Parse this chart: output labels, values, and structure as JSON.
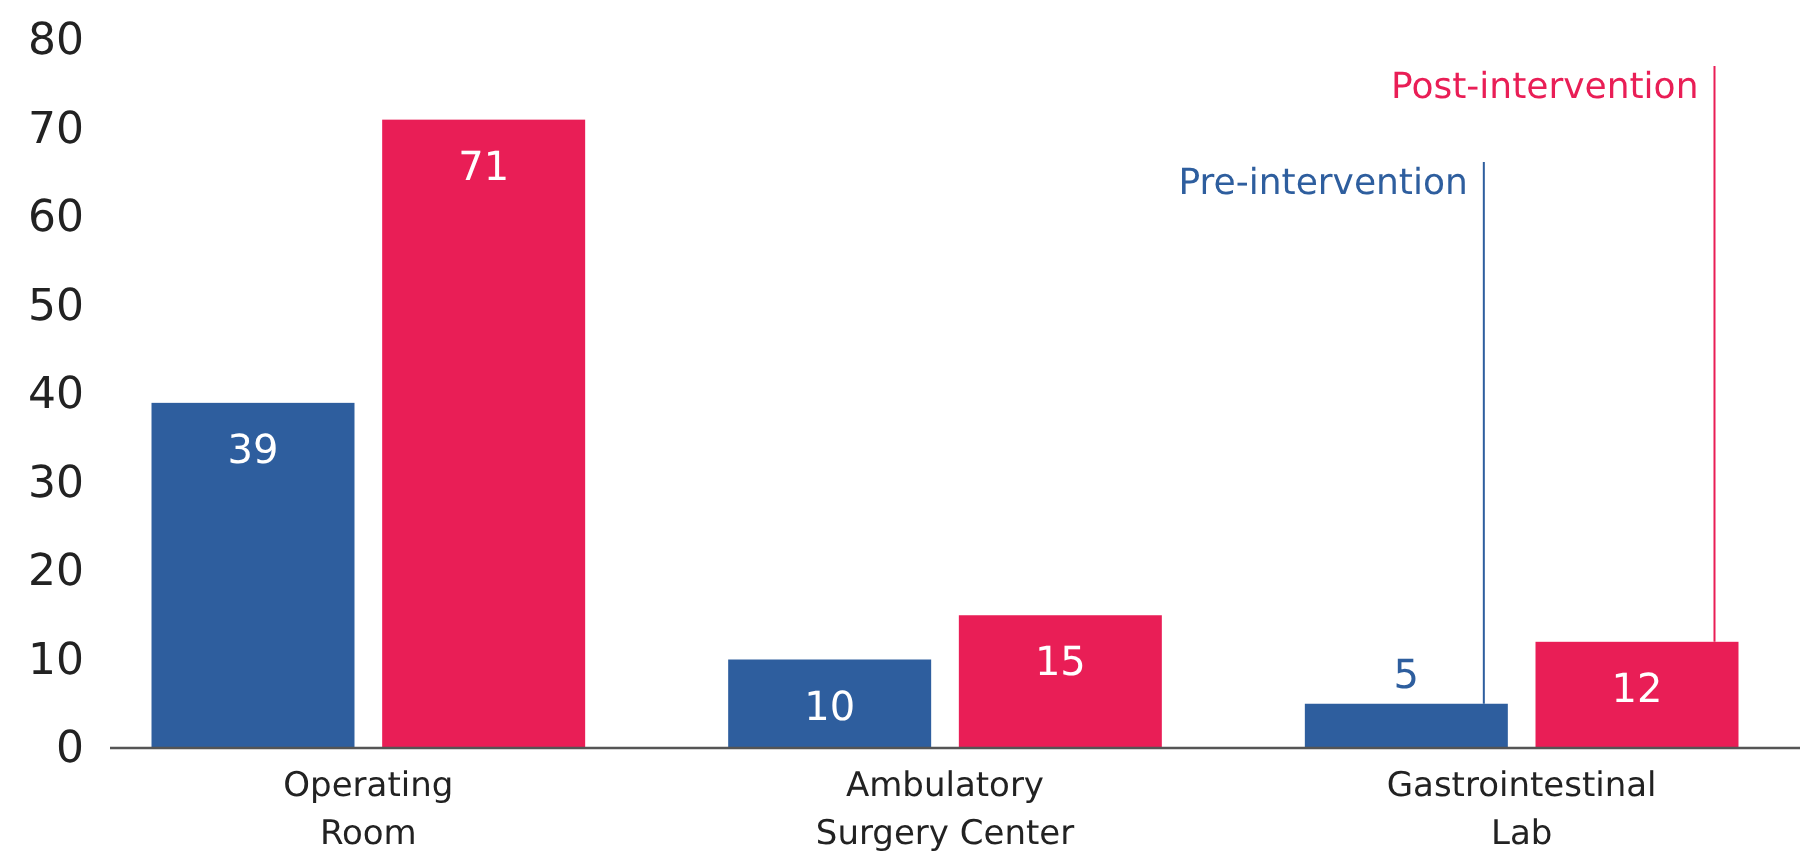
{
  "chart_data": {
    "type": "bar",
    "categories": [
      "Operating\nRoom",
      "Ambulatory\nSurgery Center",
      "Gastrointestinal\nLab"
    ],
    "series": [
      {
        "name": "Pre-intervention",
        "color": "#2e5e9e",
        "values": [
          39,
          10,
          5
        ]
      },
      {
        "name": "Post-intervention",
        "color": "#e91e56",
        "values": [
          71,
          15,
          12
        ]
      }
    ],
    "ylim": [
      0,
      80
    ],
    "yticks": [
      0,
      10,
      20,
      30,
      40,
      50,
      60,
      70,
      80
    ],
    "grid": false,
    "legend": false,
    "data_labels": true
  }
}
